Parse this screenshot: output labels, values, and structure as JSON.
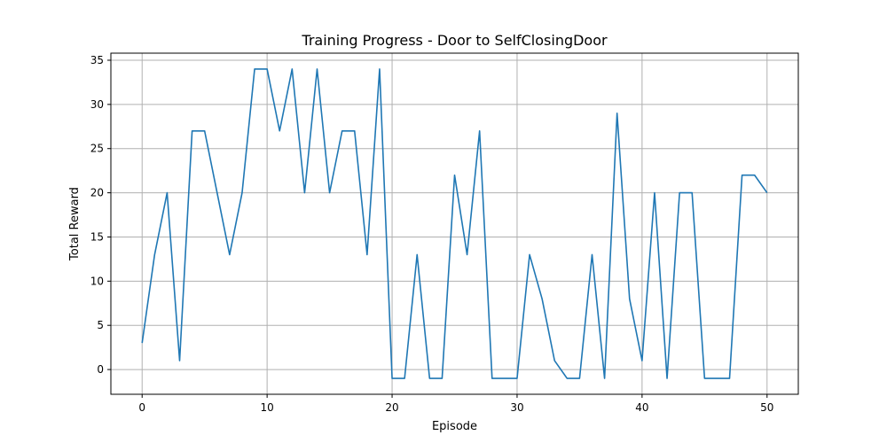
{
  "chart_data": {
    "type": "line",
    "title": "Training Progress - Door to SelfClosingDoor",
    "xlabel": "Episode",
    "ylabel": "Total Reward",
    "xlim": [
      -2.5,
      52.5
    ],
    "ylim": [
      -2.8,
      35.8
    ],
    "xticks": [
      0,
      10,
      20,
      30,
      40,
      50
    ],
    "yticks": [
      0,
      5,
      10,
      15,
      20,
      25,
      30,
      35
    ],
    "grid": true,
    "colors": {
      "line": "#1f77b4",
      "grid": "#b0b0b0",
      "axis": "#000000"
    },
    "series": [
      {
        "x": [
          0,
          1,
          2,
          3,
          4,
          5,
          6,
          7,
          8,
          9,
          10,
          11,
          12,
          13,
          14,
          15,
          16,
          17,
          18,
          19,
          20,
          21,
          22,
          23,
          24,
          25,
          26,
          27,
          28,
          29,
          30,
          31,
          32,
          33,
          34,
          35,
          36,
          37,
          38,
          39,
          40,
          41,
          42,
          43,
          44,
          45,
          46,
          47,
          48,
          49,
          50
        ],
        "y": [
          3,
          13,
          20,
          1,
          27,
          27,
          20,
          13,
          20,
          34,
          34,
          27,
          34,
          20,
          34,
          20,
          27,
          27,
          13,
          34,
          -1,
          -1,
          13,
          -1,
          -1,
          22,
          13,
          27,
          -1,
          -1,
          -1,
          13,
          8,
          1,
          -1,
          -1,
          13,
          -1,
          29,
          8,
          1,
          20,
          -1,
          20,
          20,
          -1,
          -1,
          -1,
          22,
          22,
          20
        ]
      }
    ]
  }
}
